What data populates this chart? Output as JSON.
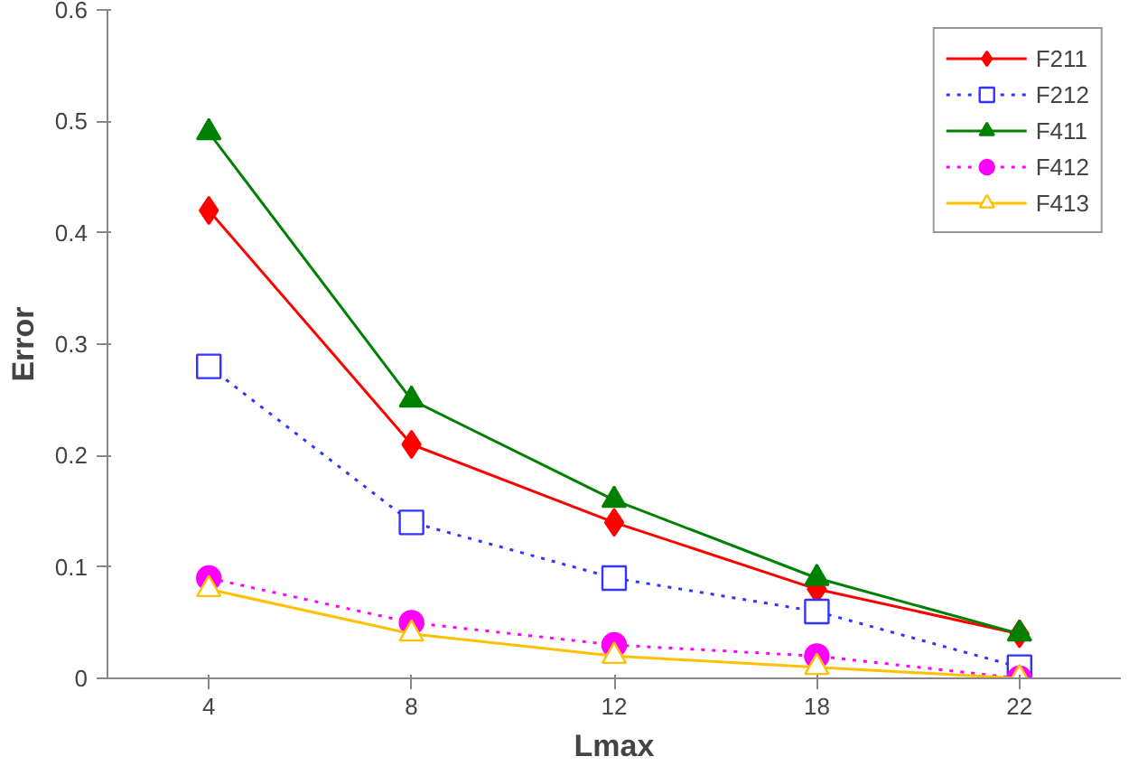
{
  "chart_data": {
    "type": "line",
    "xlabel": "Lmax",
    "ylabel": "Error",
    "categories": [
      "4",
      "8",
      "12",
      "18",
      "22"
    ],
    "ylim": [
      0,
      0.6
    ],
    "yticks": [
      0,
      0.1,
      0.2,
      0.3,
      0.4,
      0.5,
      0.6
    ],
    "grid": false,
    "legend": "top right",
    "series": [
      {
        "name": "F211",
        "color": "#ff0000",
        "marker": "diamond",
        "line_style": "solid",
        "values": [
          0.42,
          0.21,
          0.14,
          0.08,
          0.04
        ]
      },
      {
        "name": "F212",
        "color": "#3333ff",
        "marker": "square",
        "line_style": "dotted",
        "values": [
          0.28,
          0.14,
          0.09,
          0.06,
          0.01
        ]
      },
      {
        "name": "F411",
        "color": "#008000",
        "marker": "triangle",
        "line_style": "solid",
        "values": [
          0.49,
          0.25,
          0.16,
          0.09,
          0.04
        ]
      },
      {
        "name": "F412",
        "color": "#ff00ff",
        "marker": "circle",
        "line_style": "dotted",
        "values": [
          0.09,
          0.05,
          0.03,
          0.02,
          0.0
        ]
      },
      {
        "name": "F413",
        "color": "#ffc000",
        "marker": "triangle",
        "line_style": "solid",
        "values": [
          0.08,
          0.04,
          0.02,
          0.01,
          0.0
        ]
      }
    ]
  }
}
